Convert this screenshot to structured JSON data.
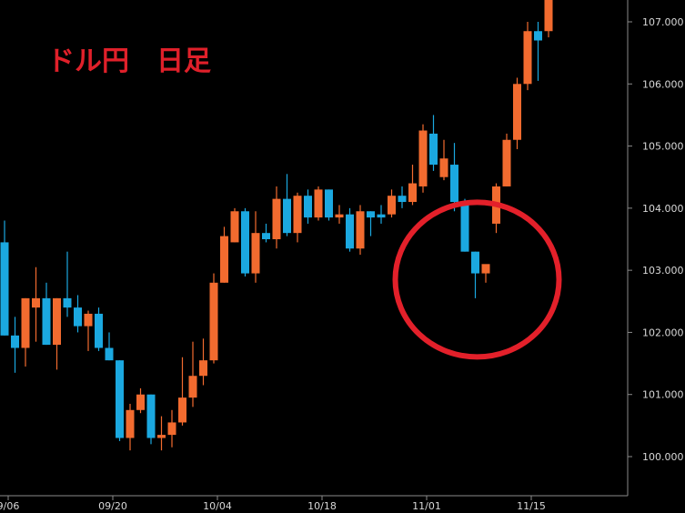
{
  "chart_data": {
    "type": "candlestick",
    "title": "ドル円　日足",
    "ylim": [
      99.45,
      107.4
    ],
    "y_ticks": [
      "100.000",
      "101.000",
      "102.000",
      "103.000",
      "104.000",
      "105.000",
      "106.000",
      "107.000"
    ],
    "y_tick_values": [
      100,
      101,
      102,
      103,
      104,
      105,
      106,
      107
    ],
    "x_ticks": [
      {
        "label": "9/06",
        "index": 0
      },
      {
        "label": "09/20",
        "index": 10
      },
      {
        "label": "10/04",
        "index": 20
      },
      {
        "label": "10/18",
        "index": 30
      },
      {
        "label": "11/01",
        "index": 40
      },
      {
        "label": "11/15",
        "index": 50
      }
    ],
    "candles": [
      {
        "o": 103.45,
        "h": 103.8,
        "l": 101.95,
        "c": 101.95,
        "dir": "down"
      },
      {
        "o": 101.95,
        "h": 102.25,
        "l": 101.35,
        "c": 101.75,
        "dir": "down"
      },
      {
        "o": 101.75,
        "h": 102.55,
        "l": 101.45,
        "c": 102.55,
        "dir": "up"
      },
      {
        "o": 102.4,
        "h": 103.05,
        "l": 101.85,
        "c": 102.55,
        "dir": "up"
      },
      {
        "o": 102.55,
        "h": 102.8,
        "l": 101.8,
        "c": 101.8,
        "dir": "down"
      },
      {
        "o": 101.8,
        "h": 102.55,
        "l": 101.4,
        "c": 102.55,
        "dir": "up"
      },
      {
        "o": 102.55,
        "h": 103.3,
        "l": 102.25,
        "c": 102.4,
        "dir": "down"
      },
      {
        "o": 102.4,
        "h": 102.6,
        "l": 102.0,
        "c": 102.1,
        "dir": "down"
      },
      {
        "o": 102.1,
        "h": 102.35,
        "l": 101.7,
        "c": 102.3,
        "dir": "up"
      },
      {
        "o": 102.3,
        "h": 102.4,
        "l": 101.7,
        "c": 101.75,
        "dir": "down"
      },
      {
        "o": 101.75,
        "h": 102.0,
        "l": 101.55,
        "c": 101.55,
        "dir": "down"
      },
      {
        "o": 101.55,
        "h": 101.55,
        "l": 100.25,
        "c": 100.3,
        "dir": "down"
      },
      {
        "o": 100.3,
        "h": 100.85,
        "l": 100.1,
        "c": 100.75,
        "dir": "up"
      },
      {
        "o": 100.75,
        "h": 101.1,
        "l": 100.7,
        "c": 101.0,
        "dir": "up"
      },
      {
        "o": 101.0,
        "h": 101.0,
        "l": 100.2,
        "c": 100.3,
        "dir": "down"
      },
      {
        "o": 100.3,
        "h": 100.65,
        "l": 100.1,
        "c": 100.35,
        "dir": "up"
      },
      {
        "o": 100.35,
        "h": 100.75,
        "l": 100.15,
        "c": 100.55,
        "dir": "up"
      },
      {
        "o": 100.55,
        "h": 101.6,
        "l": 100.5,
        "c": 100.95,
        "dir": "up"
      },
      {
        "o": 100.95,
        "h": 101.85,
        "l": 100.8,
        "c": 101.3,
        "dir": "up"
      },
      {
        "o": 101.3,
        "h": 101.9,
        "l": 101.15,
        "c": 101.55,
        "dir": "up"
      },
      {
        "o": 101.55,
        "h": 102.95,
        "l": 101.5,
        "c": 102.8,
        "dir": "up"
      },
      {
        "o": 102.8,
        "h": 103.7,
        "l": 102.8,
        "c": 103.55,
        "dir": "up"
      },
      {
        "o": 103.45,
        "h": 104.0,
        "l": 103.45,
        "c": 103.95,
        "dir": "up"
      },
      {
        "o": 103.95,
        "h": 104.0,
        "l": 102.9,
        "c": 102.95,
        "dir": "down"
      },
      {
        "o": 102.95,
        "h": 103.95,
        "l": 102.8,
        "c": 103.6,
        "dir": "up"
      },
      {
        "o": 103.6,
        "h": 103.75,
        "l": 103.45,
        "c": 103.5,
        "dir": "down"
      },
      {
        "o": 103.5,
        "h": 104.35,
        "l": 103.35,
        "c": 104.15,
        "dir": "up"
      },
      {
        "o": 104.15,
        "h": 104.55,
        "l": 103.55,
        "c": 103.6,
        "dir": "down"
      },
      {
        "o": 103.6,
        "h": 104.25,
        "l": 103.45,
        "c": 104.2,
        "dir": "up"
      },
      {
        "o": 104.2,
        "h": 104.3,
        "l": 103.75,
        "c": 103.85,
        "dir": "down"
      },
      {
        "o": 103.85,
        "h": 104.35,
        "l": 103.8,
        "c": 104.3,
        "dir": "up"
      },
      {
        "o": 104.3,
        "h": 104.3,
        "l": 103.8,
        "c": 103.85,
        "dir": "down"
      },
      {
        "o": 103.85,
        "h": 104.05,
        "l": 103.75,
        "c": 103.9,
        "dir": "up"
      },
      {
        "o": 103.9,
        "h": 104.0,
        "l": 103.3,
        "c": 103.35,
        "dir": "down"
      },
      {
        "o": 103.35,
        "h": 104.05,
        "l": 103.25,
        "c": 103.95,
        "dir": "up"
      },
      {
        "o": 103.95,
        "h": 103.95,
        "l": 103.55,
        "c": 103.85,
        "dir": "down"
      },
      {
        "o": 103.85,
        "h": 104.05,
        "l": 103.75,
        "c": 103.9,
        "dir": "down"
      },
      {
        "o": 103.9,
        "h": 104.3,
        "l": 103.85,
        "c": 104.2,
        "dir": "up"
      },
      {
        "o": 104.2,
        "h": 104.35,
        "l": 104.0,
        "c": 104.1,
        "dir": "down"
      },
      {
        "o": 104.1,
        "h": 104.7,
        "l": 104.05,
        "c": 104.4,
        "dir": "up"
      },
      {
        "o": 104.35,
        "h": 105.35,
        "l": 104.25,
        "c": 105.25,
        "dir": "up"
      },
      {
        "o": 105.2,
        "h": 105.5,
        "l": 104.6,
        "c": 104.7,
        "dir": "down"
      },
      {
        "o": 104.5,
        "h": 105.1,
        "l": 104.45,
        "c": 104.8,
        "dir": "up"
      },
      {
        "o": 104.7,
        "h": 105.05,
        "l": 103.95,
        "c": 104.1,
        "dir": "down"
      },
      {
        "o": 104.1,
        "h": 104.15,
        "l": 103.3,
        "c": 103.3,
        "dir": "down"
      },
      {
        "o": 103.3,
        "h": 103.3,
        "l": 102.55,
        "c": 102.95,
        "dir": "down"
      },
      {
        "o": 102.95,
        "h": 103.05,
        "l": 102.8,
        "c": 103.1,
        "dir": "up"
      },
      {
        "o": 103.75,
        "h": 104.4,
        "l": 103.6,
        "c": 104.35,
        "dir": "up"
      },
      {
        "o": 104.35,
        "h": 105.2,
        "l": 104.35,
        "c": 105.1,
        "dir": "up"
      },
      {
        "o": 105.1,
        "h": 106.1,
        "l": 104.95,
        "c": 106.0,
        "dir": "up"
      },
      {
        "o": 106.0,
        "h": 107.0,
        "l": 105.9,
        "c": 106.85,
        "dir": "up"
      },
      {
        "o": 106.7,
        "h": 107.0,
        "l": 106.05,
        "c": 106.85,
        "dir": "down"
      },
      {
        "o": 106.85,
        "h": 107.4,
        "l": 106.75,
        "c": 107.4,
        "dir": "up"
      }
    ],
    "colors": {
      "up": "#f26b2f",
      "down": "#1ba8e0",
      "wick_up": "#f26b2f",
      "wick_down": "#1ba8e0",
      "title": "#e0202a",
      "highlight_circle": "#e3202a",
      "axis": "#8a8a8a",
      "tick_text": "#d8d8d8",
      "background": "#000000"
    },
    "annotation": {
      "type": "circle",
      "center_index": 45,
      "center_price": 102.85
    }
  }
}
